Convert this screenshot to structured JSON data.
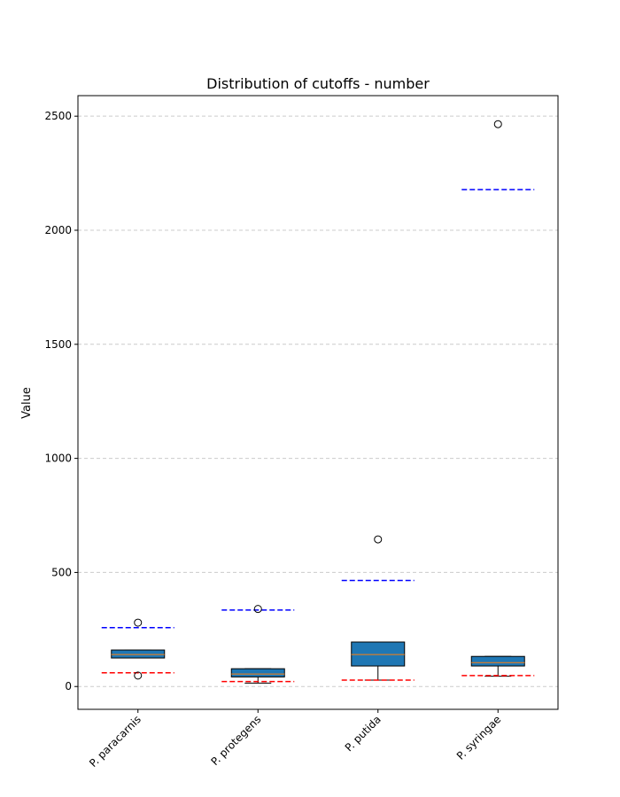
{
  "chart_data": {
    "type": "box",
    "title": "Distribution of cutoffs - number",
    "xlabel": "",
    "ylabel": "Value",
    "ylim": [
      -100,
      2590
    ],
    "yticks": [
      0,
      500,
      1000,
      1500,
      2000,
      2500
    ],
    "grid": "y-dashed",
    "box_color": "#1f77b4",
    "median_color": "#ff7f0e",
    "upper_line_color": "#0000ff",
    "lower_line_color": "#ff0000",
    "categories": [
      "P. paracarnis",
      "P. protegens",
      "P. putida",
      "P. syringae"
    ],
    "boxes": [
      {
        "category": "P. paracarnis",
        "whisker_low": 125,
        "q1": 125,
        "median": 140,
        "q3": 160,
        "whisker_high": 160,
        "outliers": [
          280,
          48
        ],
        "upper_line": 258,
        "lower_line": 60
      },
      {
        "category": "P. protegens",
        "whisker_low": 15,
        "q1": 42,
        "median": 55,
        "q3": 78,
        "whisker_high": 78,
        "outliers": [
          340
        ],
        "upper_line": 335,
        "lower_line": 22
      },
      {
        "category": "P. putida",
        "whisker_low": 28,
        "q1": 90,
        "median": 140,
        "q3": 195,
        "whisker_high": 195,
        "outliers": [
          645
        ],
        "upper_line": 465,
        "lower_line": 28
      },
      {
        "category": "P. syringae",
        "whisker_low": 45,
        "q1": 90,
        "median": 105,
        "q3": 132,
        "whisker_high": 132,
        "outliers": [
          2465
        ],
        "upper_line": 2178,
        "lower_line": 48
      }
    ]
  }
}
